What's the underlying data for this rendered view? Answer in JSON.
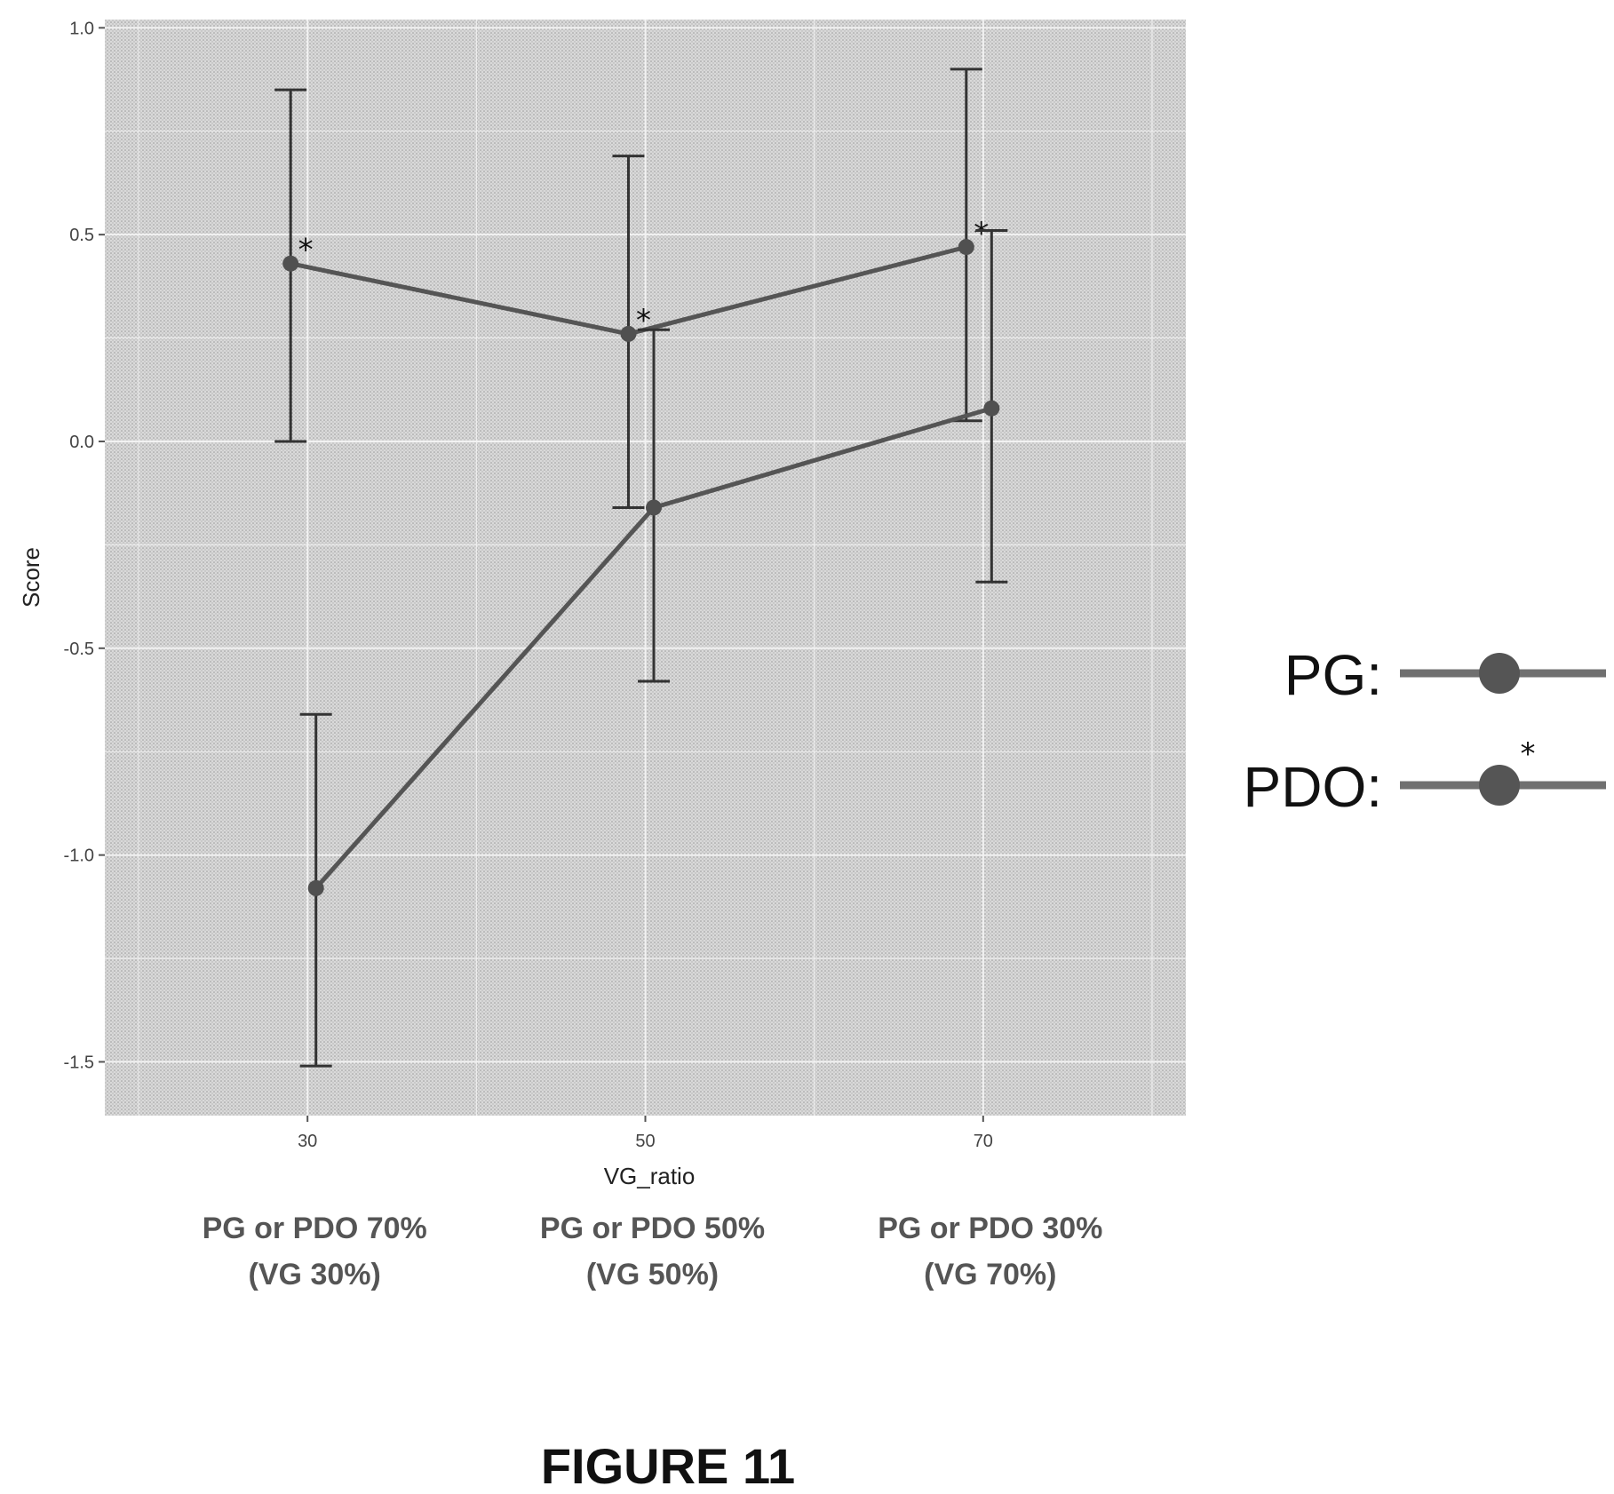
{
  "chart_data": {
    "type": "line",
    "xlabel": "VG_ratio",
    "ylabel": "Score",
    "x": [
      30,
      50,
      70
    ],
    "x_tick_labels": [
      "30",
      "50",
      "70"
    ],
    "y_ticks": [
      "1.0",
      "0.5",
      "0.0",
      "-0.5",
      "-1.0",
      "-1.5"
    ],
    "y_tick_values": [
      1.0,
      0.5,
      0.0,
      -0.5,
      -1.0,
      -1.5
    ],
    "xlim": [
      18,
      82
    ],
    "ylim": [
      -1.63,
      1.02
    ],
    "grid": true,
    "legend_position": "right",
    "series": [
      {
        "name": "PG:",
        "x_offset": -1,
        "values": [
          0.43,
          0.26,
          0.47
        ],
        "error_low": [
          0.0,
          -0.16,
          0.05
        ],
        "error_high": [
          0.85,
          0.69,
          0.9
        ],
        "annotation": "*"
      },
      {
        "name": "PDO:",
        "x_offset": 0.5,
        "values": [
          -1.08,
          -0.16,
          0.08
        ],
        "error_low": [
          -1.51,
          -0.58,
          -0.34
        ],
        "error_high": [
          -0.66,
          0.27,
          0.51
        ],
        "annotation": ""
      }
    ],
    "legend_annotation": "*",
    "category_labels": [
      {
        "line1": "PG or PDO 70%",
        "line2": "(VG 30%)"
      },
      {
        "line1": "PG or PDO 50%",
        "line2": "(VG 50%)"
      },
      {
        "line1": "PG or PDO 30%",
        "line2": "(VG 70%)"
      }
    ],
    "caption": "FIGURE 11"
  },
  "colors": {
    "panel_background": "#d4d4d4",
    "grid": "#f2f2f2",
    "line": "#555555",
    "point": "#505050",
    "errorbar": "#333333"
  }
}
